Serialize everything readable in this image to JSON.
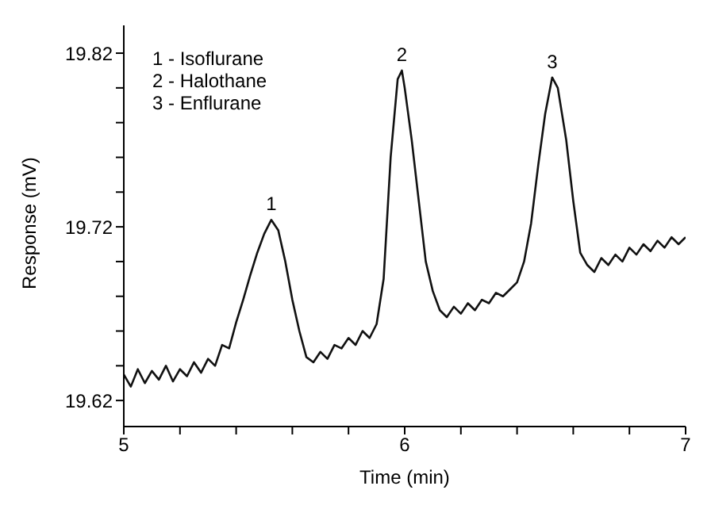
{
  "chart_data": {
    "type": "line",
    "xlabel": "Time (min)",
    "ylabel": "Response (mV)",
    "x": [
      5.0,
      5.025,
      5.05,
      5.075,
      5.1,
      5.125,
      5.15,
      5.175,
      5.2,
      5.225,
      5.25,
      5.275,
      5.3,
      5.325,
      5.35,
      5.375,
      5.4,
      5.425,
      5.45,
      5.475,
      5.5,
      5.525,
      5.55,
      5.575,
      5.6,
      5.625,
      5.65,
      5.675,
      5.7,
      5.725,
      5.75,
      5.775,
      5.8,
      5.825,
      5.85,
      5.875,
      5.9,
      5.925,
      5.95,
      5.975,
      5.99,
      6.0,
      6.025,
      6.05,
      6.075,
      6.1,
      6.125,
      6.15,
      6.175,
      6.2,
      6.225,
      6.25,
      6.275,
      6.3,
      6.325,
      6.35,
      6.375,
      6.4,
      6.425,
      6.45,
      6.475,
      6.5,
      6.525,
      6.545,
      6.575,
      6.6,
      6.625,
      6.65,
      6.675,
      6.7,
      6.725,
      6.75,
      6.775,
      6.8,
      6.825,
      6.85,
      6.875,
      6.9,
      6.925,
      6.95,
      6.975,
      7.0
    ],
    "series": [
      {
        "color": "#111111",
        "values": [
          19.635,
          19.628,
          19.638,
          19.63,
          19.637,
          19.632,
          19.64,
          19.631,
          19.638,
          19.634,
          19.642,
          19.636,
          19.644,
          19.64,
          19.652,
          19.65,
          19.665,
          19.678,
          19.692,
          19.705,
          19.716,
          19.724,
          19.718,
          19.7,
          19.678,
          19.66,
          19.645,
          19.642,
          19.648,
          19.644,
          19.652,
          19.65,
          19.656,
          19.652,
          19.66,
          19.656,
          19.664,
          19.69,
          19.76,
          19.805,
          19.81,
          19.8,
          19.77,
          19.735,
          19.7,
          19.683,
          19.672,
          19.668,
          19.674,
          19.67,
          19.676,
          19.672,
          19.678,
          19.676,
          19.682,
          19.68,
          19.684,
          19.688,
          19.7,
          19.722,
          19.755,
          19.785,
          19.806,
          19.8,
          19.77,
          19.735,
          19.705,
          19.698,
          19.694,
          19.702,
          19.698,
          19.704,
          19.7,
          19.708,
          19.704,
          19.71,
          19.706,
          19.712,
          19.708,
          19.714,
          19.71,
          19.714
        ]
      }
    ],
    "xlim": [
      5,
      7
    ],
    "xticks": [
      5,
      {
        "value": 5.2,
        "label": null
      },
      {
        "value": 5.4,
        "label": null
      },
      {
        "value": 5.6,
        "label": null
      },
      {
        "value": 5.8,
        "label": null
      },
      6,
      {
        "value": 6.2,
        "label": null
      },
      {
        "value": 6.4,
        "label": null
      },
      {
        "value": 6.6,
        "label": null
      },
      {
        "value": 6.8,
        "label": null
      },
      7
    ],
    "ylim": [
      19.605,
      19.836
    ],
    "yticks": [
      {
        "value": 19.62,
        "label": "19.62"
      },
      {
        "value": 19.64,
        "label": null
      },
      {
        "value": 19.66,
        "label": null
      },
      {
        "value": 19.68,
        "label": null
      },
      {
        "value": 19.7,
        "label": null
      },
      {
        "value": 19.72,
        "label": "19.72"
      },
      {
        "value": 19.74,
        "label": null
      },
      {
        "value": 19.76,
        "label": null
      },
      {
        "value": 19.78,
        "label": null
      },
      {
        "value": 19.8,
        "label": null
      },
      {
        "value": 19.82,
        "label": "19.82"
      }
    ],
    "annotations": [
      "1 - Isoflurane",
      "2 - Halothane",
      "3 - Enflurane",
      {
        "text": "1",
        "x": 5.525,
        "y": 19.724
      },
      {
        "text": "2",
        "x": 5.99,
        "y": 19.81
      },
      {
        "text": "3",
        "x": 6.525,
        "y": 19.806
      }
    ],
    "grid": false,
    "legend": false,
    "marker": "none",
    "line_style": "solid"
  }
}
